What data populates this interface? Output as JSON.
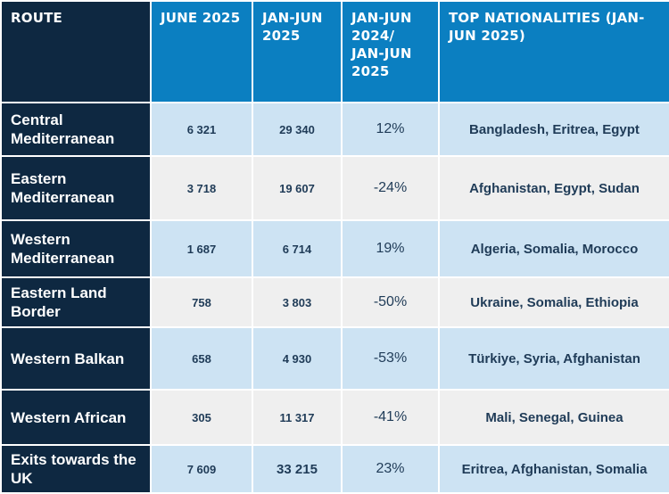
{
  "headers": {
    "route": "ROUTE",
    "june": "JUNE 2025",
    "janjun": "JAN-JUN 2025",
    "change": "JAN-JUN 2024/ JAN-JUN 2025",
    "nationalities": "TOP NATIONALITIES (JAN-JUN 2025)"
  },
  "rows": [
    {
      "route": "Central Mediterranean",
      "june": "6 321",
      "janjun": "29 340",
      "change": "12%",
      "nationalities": "Bangladesh, Eritrea, Egypt"
    },
    {
      "route": "Eastern Mediterranean",
      "june": "3 718",
      "janjun": "19 607",
      "change": "-24%",
      "nationalities": "Afghanistan, Egypt, Sudan"
    },
    {
      "route": "Western Mediterranean",
      "june": "1 687",
      "janjun": "6 714",
      "change": "19%",
      "nationalities": "Algeria, Somalia, Morocco"
    },
    {
      "route": "Eastern Land Border",
      "june": "758",
      "janjun": "3 803",
      "change": "-50%",
      "nationalities": "Ukraine, Somalia, Ethiopia"
    },
    {
      "route": "Western Balkan",
      "june": "658",
      "janjun": "4 930",
      "change": "-53%",
      "nationalities": "Türkiye, Syria, Afghanistan"
    },
    {
      "route": "Western African",
      "june": "305",
      "janjun": "11 317",
      "change": "-41%",
      "nationalities": "Mali, Senegal, Guinea"
    },
    {
      "route": "Exits towards the UK",
      "june": "7 609",
      "janjun": "33 215",
      "change": "23%",
      "nationalities": "Eritrea, Afghanistan, Somalia"
    }
  ],
  "colors": {
    "navy": "#0e2841",
    "header_blue": "#0b7fc1",
    "row_light": "#cde3f3",
    "row_grey": "#efefef",
    "text": "#1f3b57"
  }
}
